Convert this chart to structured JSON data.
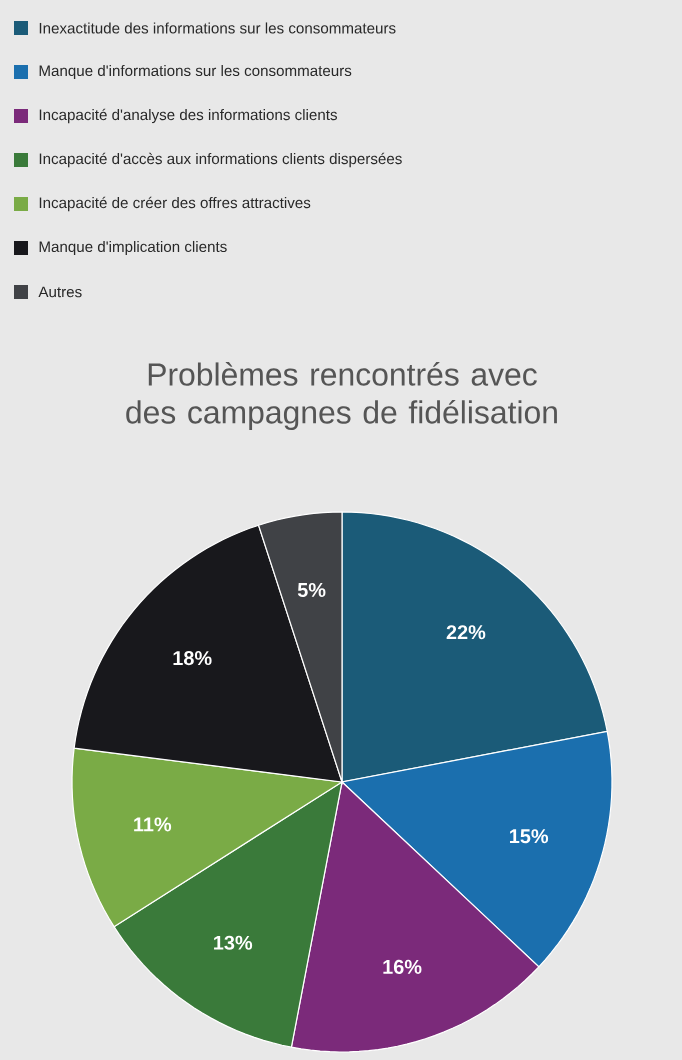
{
  "chart_data": {
    "type": "pie",
    "title": "Problèmes rencontrés avec des campagnes de fidélisation",
    "categories": [
      "Inexactitude des informations sur les consommateurs",
      "Manque d'informations sur les consommateurs",
      "Incapacité d'analyse des informations clients",
      "Incapacité d'accès aux informations clients dispersées",
      "Incapacité de créer des offres attractives",
      "Manque d'implication clients",
      "Autres"
    ],
    "values": [
      22,
      15,
      16,
      13,
      11,
      18,
      5
    ],
    "value_labels": [
      "22%",
      "15%",
      "16%",
      "13%",
      "11%",
      "18%",
      "5%"
    ],
    "colors": [
      "#1b5b78",
      "#1b6fae",
      "#7b2a7a",
      "#3a7a3a",
      "#7aab46",
      "#18181c",
      "#404246"
    ],
    "legend": "top left"
  }
}
